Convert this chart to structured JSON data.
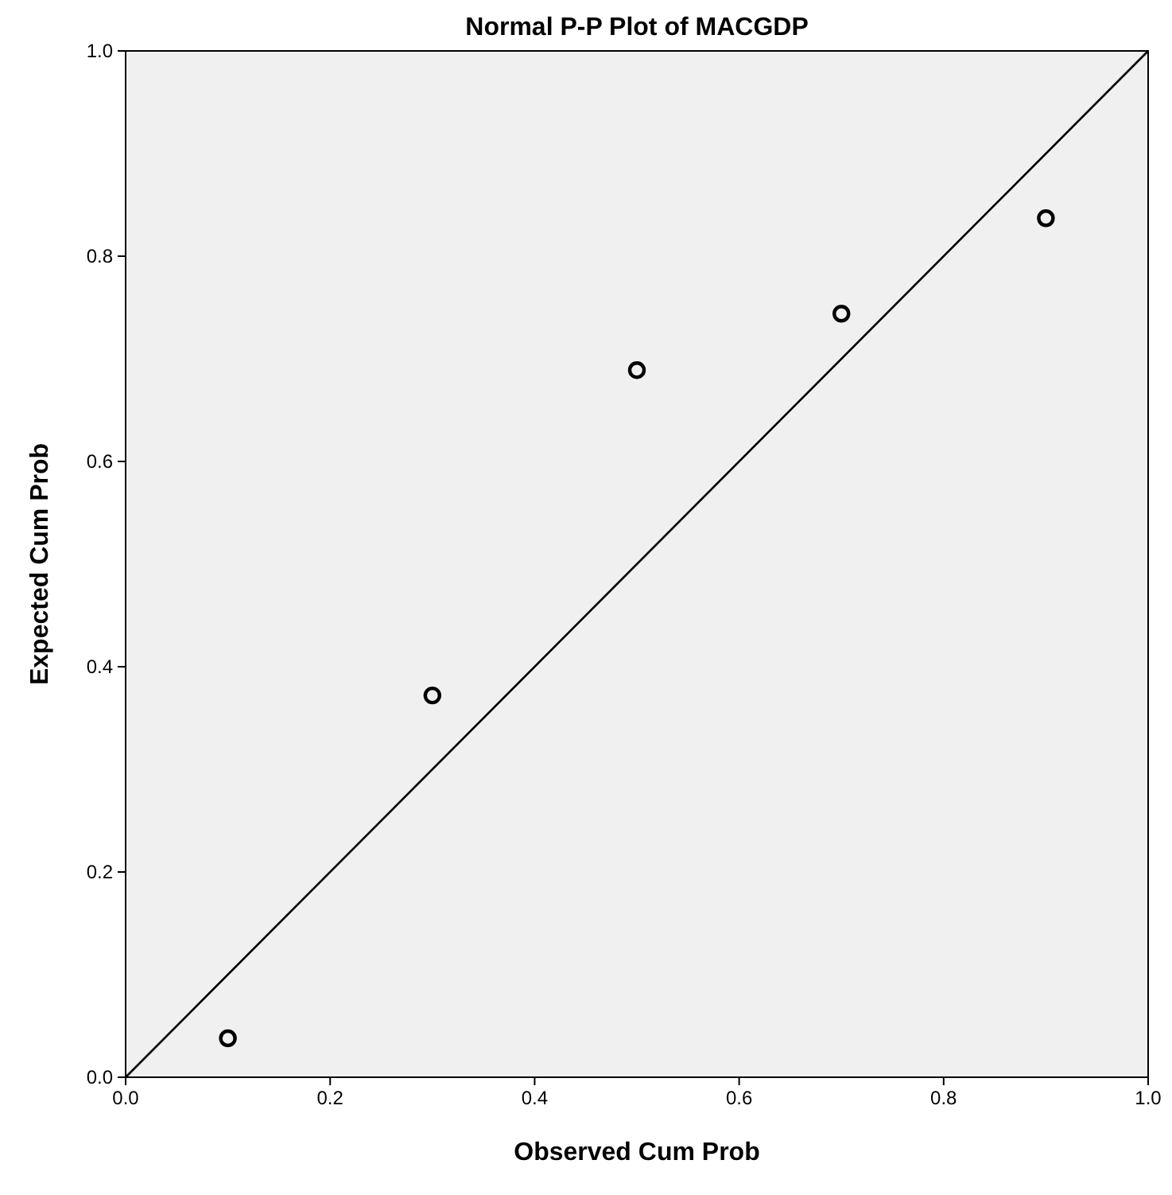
{
  "chart_data": {
    "type": "scatter",
    "title": "Normal P-P Plot of MACGDP",
    "xlabel": "Observed Cum Prob",
    "ylabel": "Expected Cum Prob",
    "x": [
      0.1,
      0.3,
      0.5,
      0.7,
      0.9
    ],
    "series": [
      {
        "color": "#000000",
        "values": [
          0.038,
          0.372,
          0.689,
          0.744,
          0.837
        ],
        "marker": "circle"
      },
      {
        "type": "line",
        "color": "#000000",
        "x": [
          0,
          1
        ],
        "values": [
          0,
          1
        ],
        "line_style": "solid"
      }
    ],
    "xlim": [
      0,
      1
    ],
    "ylim": [
      0,
      1
    ],
    "xticks": [
      {
        "value": 0,
        "label": "0.0"
      },
      {
        "value": 0.2,
        "label": "0.2"
      },
      {
        "value": 0.4,
        "label": "0.4"
      },
      {
        "value": 0.6,
        "label": "0.6"
      },
      {
        "value": 0.8,
        "label": "0.8"
      },
      {
        "value": 1,
        "label": "1.0"
      }
    ],
    "yticks": [
      {
        "value": 0,
        "label": "0.0"
      },
      {
        "value": 0.2,
        "label": "0.2"
      },
      {
        "value": 0.4,
        "label": "0.4"
      },
      {
        "value": 0.6,
        "label": "0.6"
      },
      {
        "value": 0.8,
        "label": "0.8"
      },
      {
        "value": 1,
        "label": "1.0"
      }
    ],
    "grid": false
  }
}
